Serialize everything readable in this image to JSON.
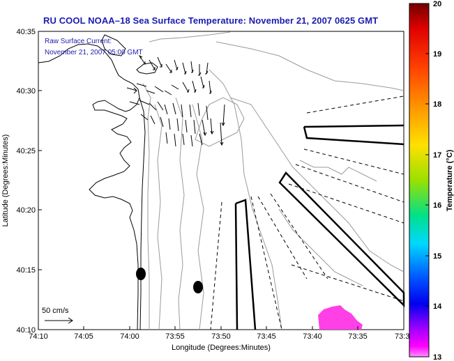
{
  "title": "RU COOL  NOAA–18  Sea Surface Temperature:  November 21, 2007 0625 GMT",
  "annotation": {
    "line1": "Raw Surface Current:",
    "line2": "November 21, 2007 05:00 GMT"
  },
  "scale_label": "50 cm/s",
  "x_axis": {
    "label": "Longitude (Degrees:Minutes)",
    "ticks": [
      "74:10",
      "74:05",
      "74:00",
      "73:55",
      "73:50",
      "73:45",
      "73:40",
      "73:35",
      "73:3"
    ]
  },
  "y_axis": {
    "label": "Latitude (Degrees:Minutes)",
    "ticks": [
      "40:35",
      "40:30",
      "40:25",
      "40:20",
      "40:15",
      "40:10"
    ]
  },
  "colorbar": {
    "label": "Temperature (°C)",
    "ticks": [
      "20",
      "19",
      "18",
      "17",
      "16",
      "15",
      "14",
      "13"
    ],
    "colors": [
      "#7a0000",
      "#ff0000",
      "#ff8000",
      "#ffd000",
      "#c8e600",
      "#00e0a0",
      "#00c8ff",
      "#0040ff",
      "#0000ff",
      "#8000ff",
      "#ff00ff",
      "#ff80ff"
    ]
  }
}
